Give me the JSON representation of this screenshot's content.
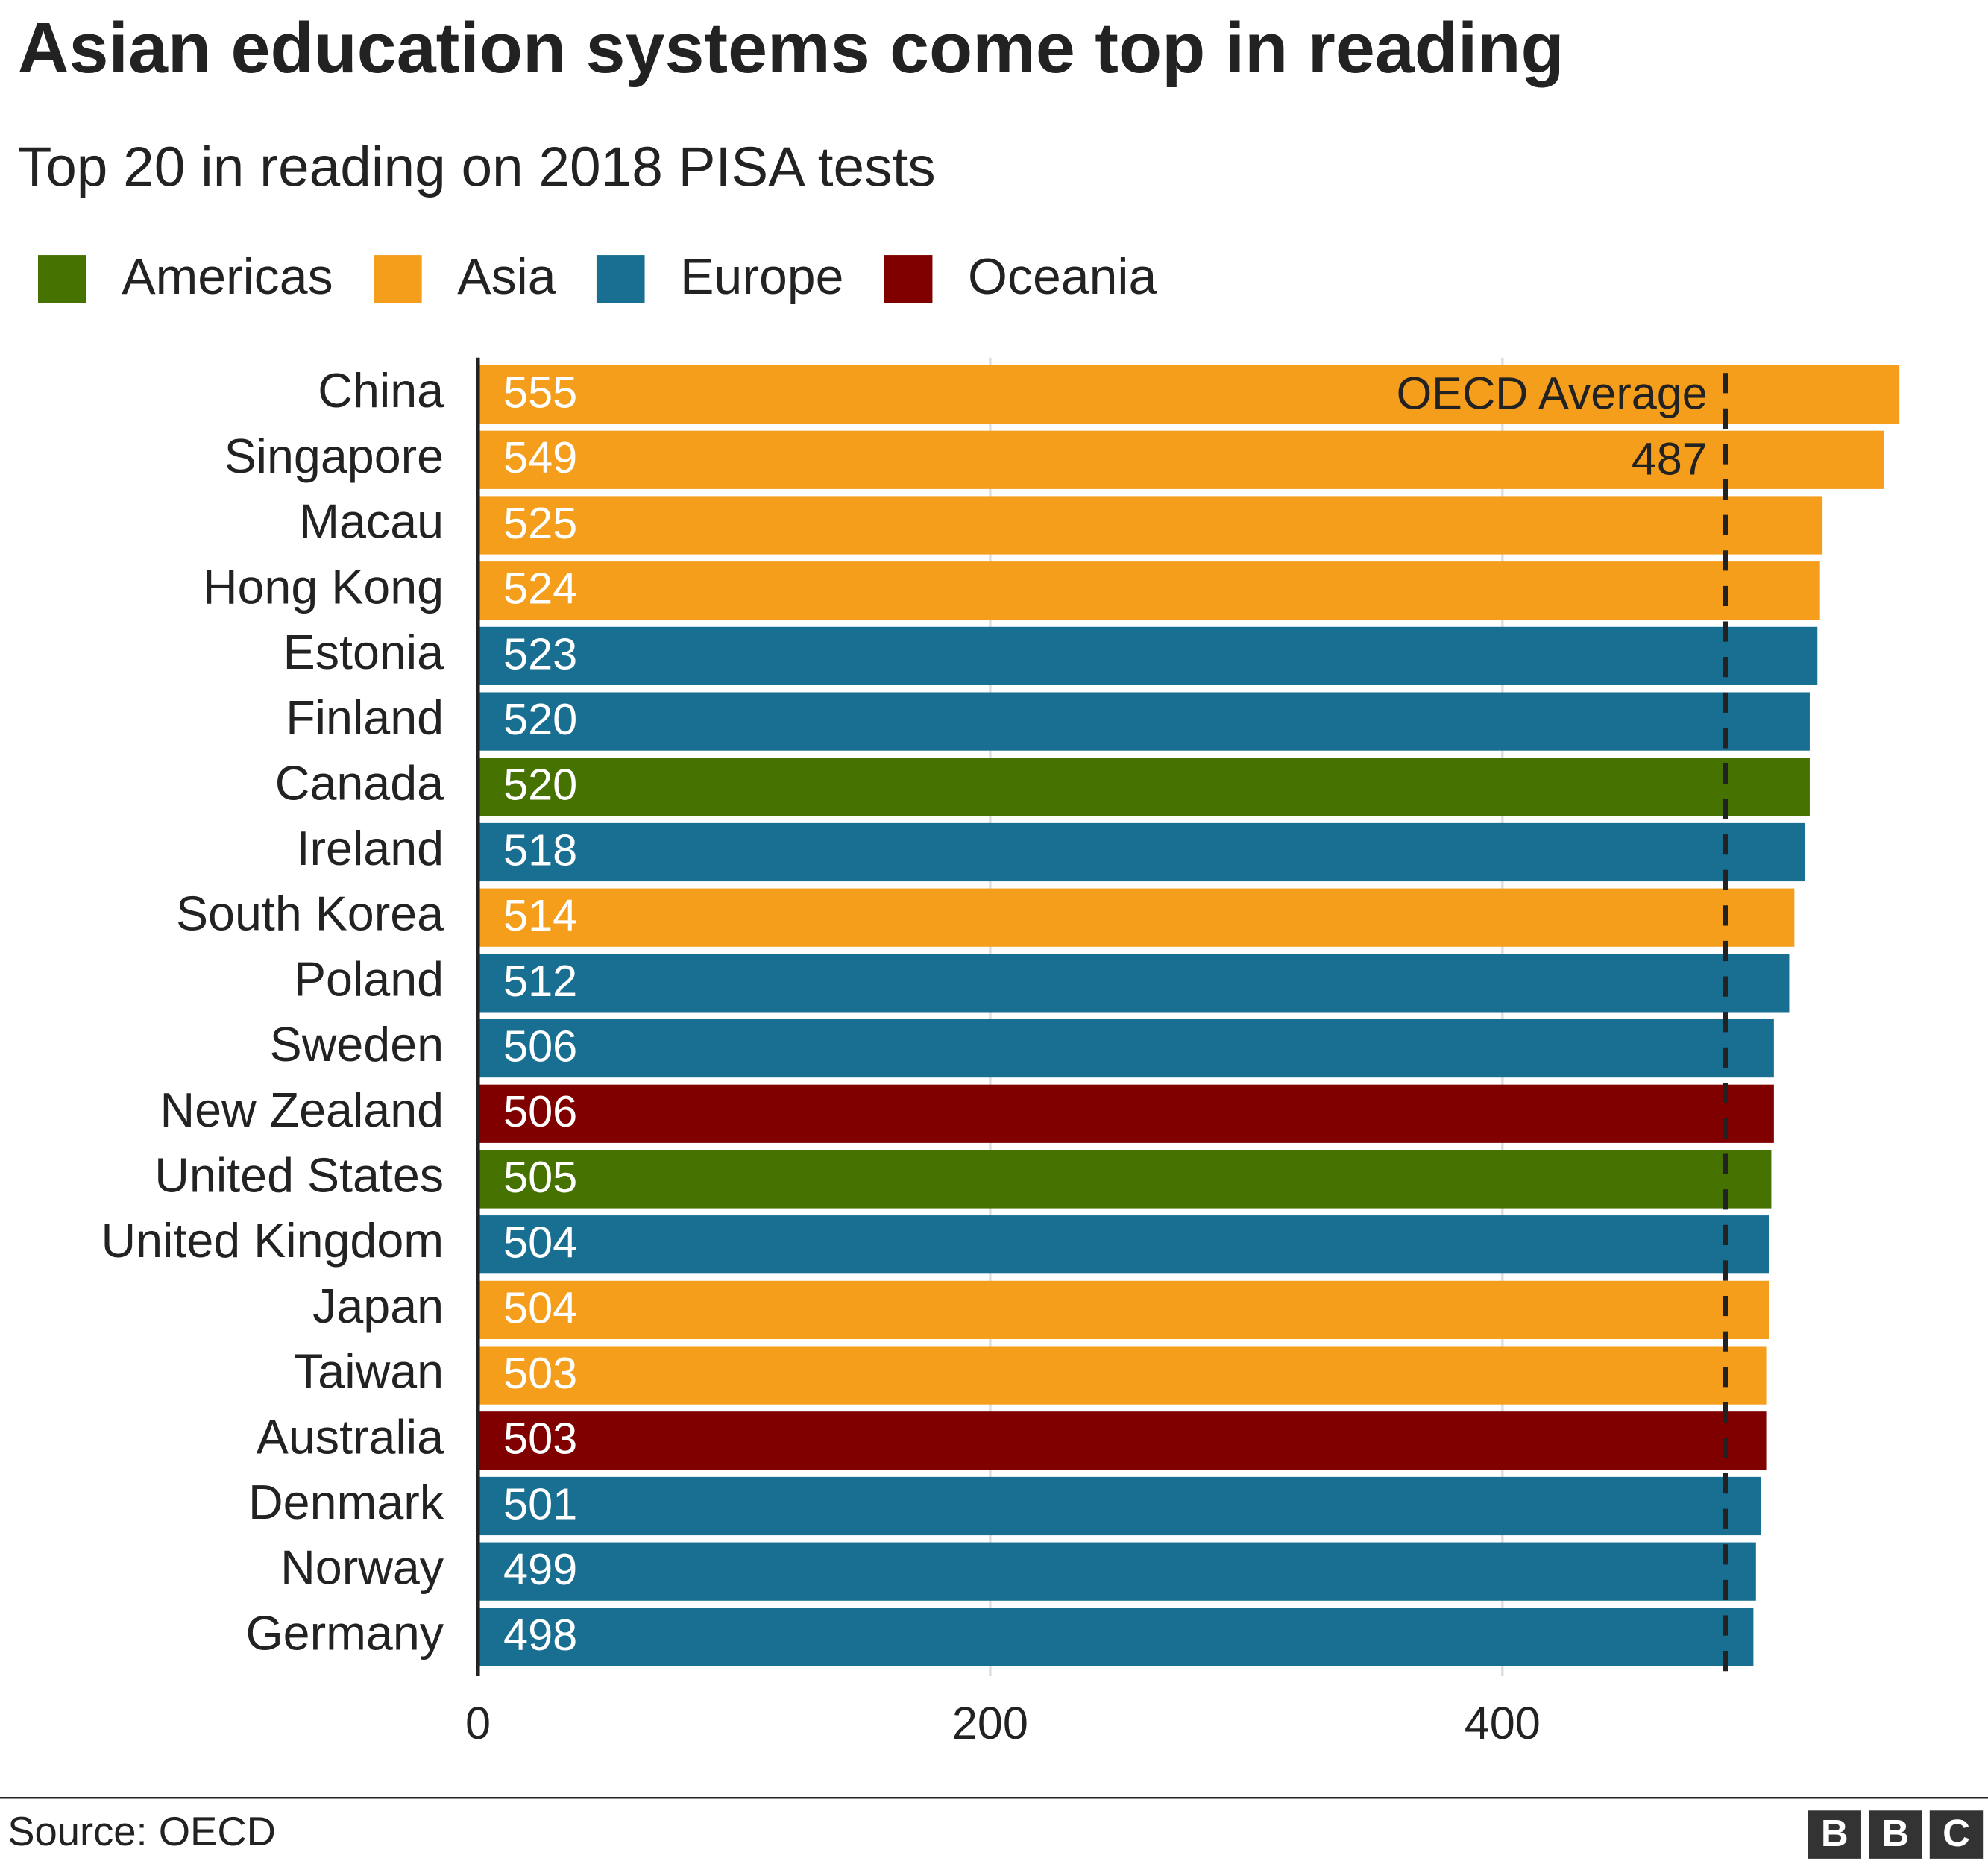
{
  "chart_data": {
    "type": "bar",
    "orientation": "horizontal",
    "title": "Asian education systems come top in reading",
    "subtitle": "Top 20 in reading on 2018 PISA tests",
    "categories": [
      "China",
      "Singapore",
      "Macau",
      "Hong Kong",
      "Estonia",
      "Finland",
      "Canada",
      "Ireland",
      "South Korea",
      "Poland",
      "Sweden",
      "New Zealand",
      "United States",
      "United Kingdom",
      "Japan",
      "Taiwan",
      "Australia",
      "Denmark",
      "Norway",
      "Germany"
    ],
    "series": [
      {
        "name": "Americas",
        "color": "#467200",
        "values": [
          null,
          null,
          null,
          null,
          null,
          null,
          520,
          null,
          null,
          null,
          null,
          null,
          505,
          null,
          null,
          null,
          null,
          null,
          null,
          null
        ]
      },
      {
        "name": "Asia",
        "color": "#f49e1c",
        "values": [
          555,
          549,
          525,
          524,
          null,
          null,
          null,
          null,
          514,
          null,
          null,
          null,
          null,
          null,
          504,
          503,
          null,
          null,
          null,
          null
        ]
      },
      {
        "name": "Europe",
        "color": "#186f91",
        "values": [
          null,
          null,
          null,
          null,
          523,
          520,
          null,
          518,
          null,
          512,
          506,
          null,
          null,
          504,
          null,
          null,
          null,
          501,
          499,
          498
        ]
      },
      {
        "name": "Oceania",
        "color": "#800000",
        "values": [
          null,
          null,
          null,
          null,
          null,
          null,
          null,
          null,
          null,
          null,
          null,
          506,
          null,
          null,
          null,
          null,
          503,
          null,
          null,
          null
        ]
      }
    ],
    "xlim": [
      0,
      590
    ],
    "xticks": [
      0,
      200,
      400
    ],
    "grid": true,
    "reference": {
      "label": "OECD Average",
      "value": 487
    },
    "source": "Source: OECD",
    "logo": [
      "B",
      "B",
      "C"
    ]
  }
}
